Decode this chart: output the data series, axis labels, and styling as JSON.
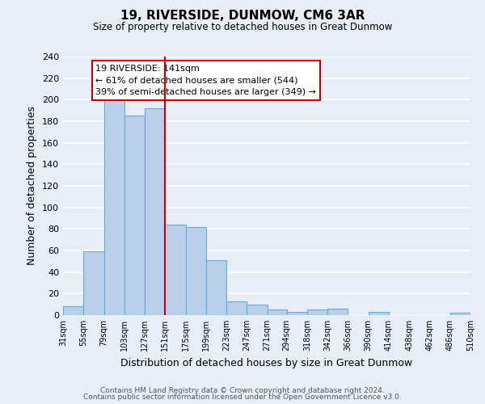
{
  "title": "19, RIVERSIDE, DUNMOW, CM6 3AR",
  "subtitle": "Size of property relative to detached houses in Great Dunmow",
  "xlabel": "Distribution of detached houses by size in Great Dunmow",
  "ylabel": "Number of detached properties",
  "bar_edges": [
    31,
    55,
    79,
    103,
    127,
    151,
    175,
    199,
    223,
    247,
    271,
    294,
    318,
    342,
    366,
    390,
    414,
    438,
    462,
    486,
    510
  ],
  "bar_heights": [
    8,
    59,
    200,
    185,
    192,
    84,
    82,
    51,
    13,
    10,
    5,
    3,
    5,
    6,
    0,
    3,
    0,
    0,
    0,
    2
  ],
  "bar_color": "#b8d0ea",
  "bar_edgecolor": "#6aaad4",
  "vline_x": 151,
  "vline_color": "#cc0000",
  "annotation_text": "19 RIVERSIDE: 141sqm\n← 61% of detached houses are smaller (544)\n39% of semi-detached houses are larger (349) →",
  "annotation_box_color": "#ffffff",
  "annotation_box_edgecolor": "#cc0000",
  "ylim": [
    0,
    240
  ],
  "yticks": [
    0,
    20,
    40,
    60,
    80,
    100,
    120,
    140,
    160,
    180,
    200,
    220,
    240
  ],
  "tick_labels": [
    "31sqm",
    "55sqm",
    "79sqm",
    "103sqm",
    "127sqm",
    "151sqm",
    "175sqm",
    "199sqm",
    "223sqm",
    "247sqm",
    "271sqm",
    "294sqm",
    "318sqm",
    "342sqm",
    "366sqm",
    "390sqm",
    "414sqm",
    "438sqm",
    "462sqm",
    "486sqm",
    "510sqm"
  ],
  "footer1": "Contains HM Land Registry data © Crown copyright and database right 2024.",
  "footer2": "Contains public sector information licensed under the Open Government Licence v3.0.",
  "background_color": "#e8eef8",
  "grid_color": "#ffffff"
}
